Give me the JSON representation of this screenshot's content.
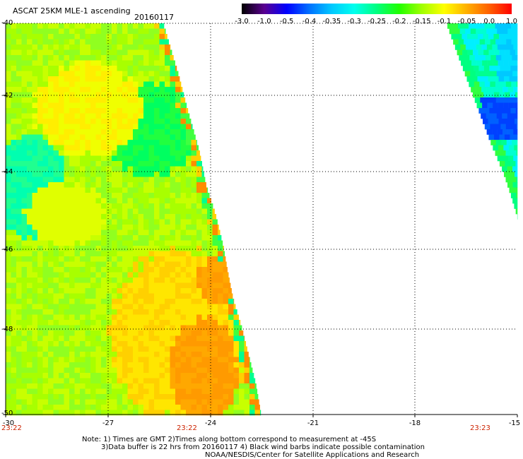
{
  "header": {
    "title": "ASCAT 25KM MLE-1 ascending",
    "date": "20160117"
  },
  "colorbar": {
    "ticks": [
      "-3.0",
      "-1.0",
      "-0.5",
      "-0.4",
      "-0.35",
      "-0.3",
      "-0.25",
      "-0.2",
      "-0.15",
      "-0.1",
      "-0.05",
      "0.0",
      "1.0"
    ],
    "colors": [
      "#000000",
      "#5a0090",
      "#0000ff",
      "#0070ff",
      "#00c8ff",
      "#00ffee",
      "#00ff80",
      "#20ff00",
      "#a0ff00",
      "#ffff00",
      "#ffb000",
      "#ff6000",
      "#ff0000"
    ]
  },
  "axes": {
    "lat_labels": [
      "-40",
      "-42",
      "-44",
      "-46",
      "-48",
      "-50"
    ],
    "lon_labels": [
      "-30",
      "-27",
      "-24",
      "-21",
      "-18",
      "-15"
    ]
  },
  "times": {
    "left": "23:22",
    "middle": "23:22",
    "right": "23:23"
  },
  "notes": {
    "line1": "Note: 1) Times are GMT 2)Times along bottom correspond to measurement at -45S",
    "line2": "3)Data buffer is 22 hrs from 20160117 4) Black wind barbs indicate possible contamination",
    "line3": "NOAA/NESDIS/Center for Satellite Applications and Research"
  }
}
